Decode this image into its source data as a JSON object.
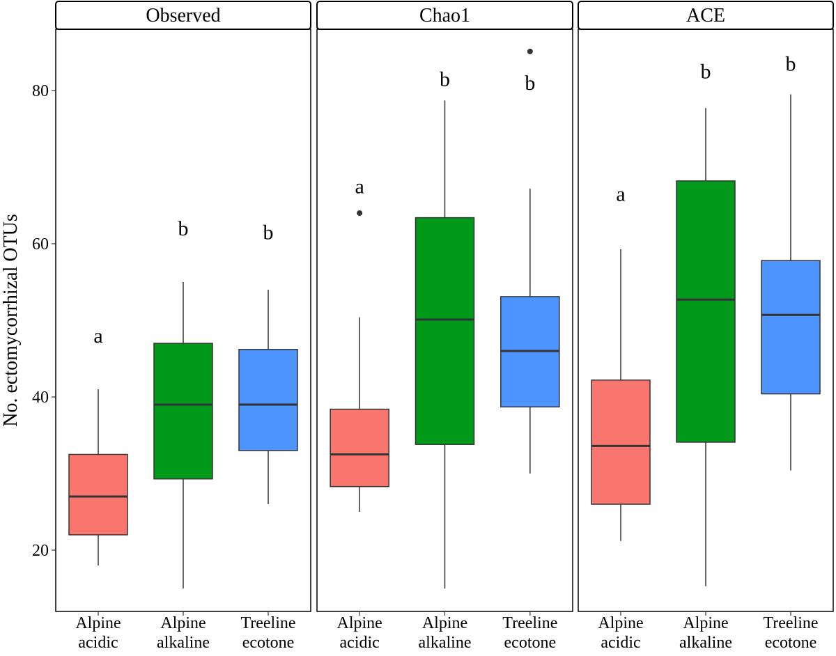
{
  "chart_data": {
    "type": "boxplot",
    "ylabel": "No. ectomycorrhizal OTUs",
    "ylim": [
      12,
      88
    ],
    "yticks": [
      20,
      40,
      60,
      80
    ],
    "categories": [
      [
        "Alpine",
        "acidic"
      ],
      [
        "Alpine",
        "alkaline"
      ],
      [
        "Treeline",
        "ecotone"
      ]
    ],
    "colors": [
      "#F8766D",
      "#00991A",
      "#4D94FF"
    ],
    "panels": [
      {
        "title": "Observed",
        "boxes": [
          {
            "min": 18,
            "q1": 22,
            "median": 27,
            "q3": 32.5,
            "max": 41,
            "outliers": [],
            "letter": "a",
            "letter_y": 48
          },
          {
            "min": 15,
            "q1": 29.3,
            "median": 39,
            "q3": 47,
            "max": 55,
            "outliers": [],
            "letter": "b",
            "letter_y": 62
          },
          {
            "min": 26,
            "q1": 33,
            "median": 39,
            "q3": 46.2,
            "max": 54,
            "outliers": [],
            "letter": "b",
            "letter_y": 61.5
          }
        ]
      },
      {
        "title": "Chao1",
        "boxes": [
          {
            "min": 25,
            "q1": 28.3,
            "median": 32.5,
            "q3": 38.4,
            "max": 50.4,
            "outliers": [
              64
            ],
            "letter": "a",
            "letter_y": 67.5
          },
          {
            "min": 15,
            "q1": 33.8,
            "median": 50.1,
            "q3": 63.4,
            "max": 78.7,
            "outliers": [],
            "letter": "b",
            "letter_y": 81.5
          },
          {
            "min": 30,
            "q1": 38.7,
            "median": 46,
            "q3": 53.1,
            "max": 67.2,
            "outliers": [
              85.1
            ],
            "letter": "b",
            "letter_y": 81
          }
        ]
      },
      {
        "title": "ACE",
        "boxes": [
          {
            "min": 21.2,
            "q1": 26,
            "median": 33.6,
            "q3": 42.2,
            "max": 59.3,
            "outliers": [],
            "letter": "a",
            "letter_y": 66.5
          },
          {
            "min": 15.3,
            "q1": 34.1,
            "median": 52.7,
            "q3": 68.2,
            "max": 77.7,
            "outliers": [],
            "letter": "b",
            "letter_y": 82.5
          },
          {
            "min": 30.4,
            "q1": 40.4,
            "median": 50.7,
            "q3": 57.8,
            "max": 79.5,
            "outliers": [],
            "letter": "b",
            "letter_y": 83.5
          }
        ]
      }
    ]
  }
}
